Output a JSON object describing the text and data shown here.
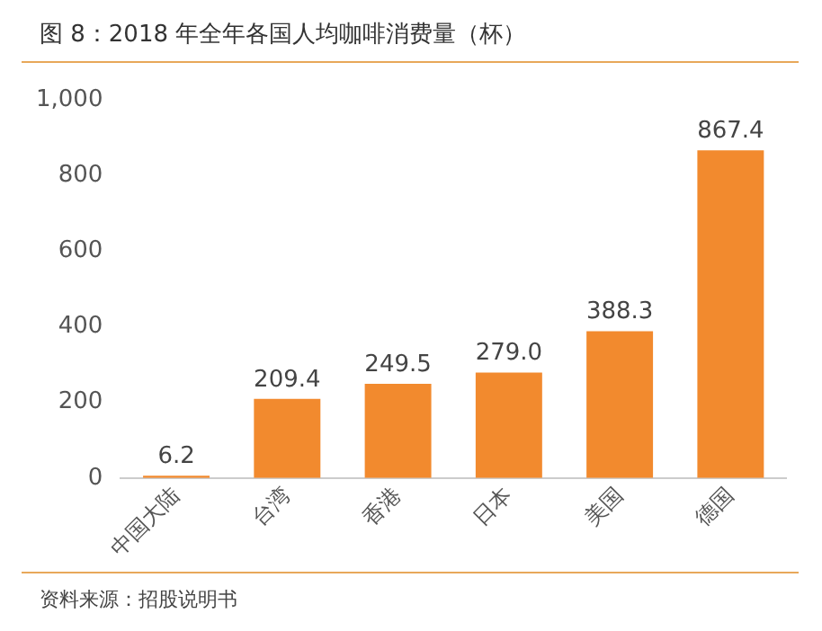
{
  "chart_data": {
    "type": "bar",
    "title": "图 8：2018 年全年各国人均咖啡消费量（杯）",
    "categories": [
      "中国大陆",
      "台湾",
      "香港",
      "日本",
      "美国",
      "德国"
    ],
    "values": [
      6.2,
      209.4,
      249.5,
      279.0,
      388.3,
      867.4
    ],
    "value_labels": [
      "6.2",
      "209.4",
      "249.5",
      "279.0",
      "388.3",
      "867.4"
    ],
    "color": "#f28a2e",
    "ylim": [
      0,
      1000
    ],
    "yticks": [
      0,
      200,
      400,
      600,
      800,
      {
        "value": 1000,
        "label": "1,000"
      }
    ],
    "grid": false,
    "annotations": [
      "资料来源：招股说明书"
    ]
  }
}
